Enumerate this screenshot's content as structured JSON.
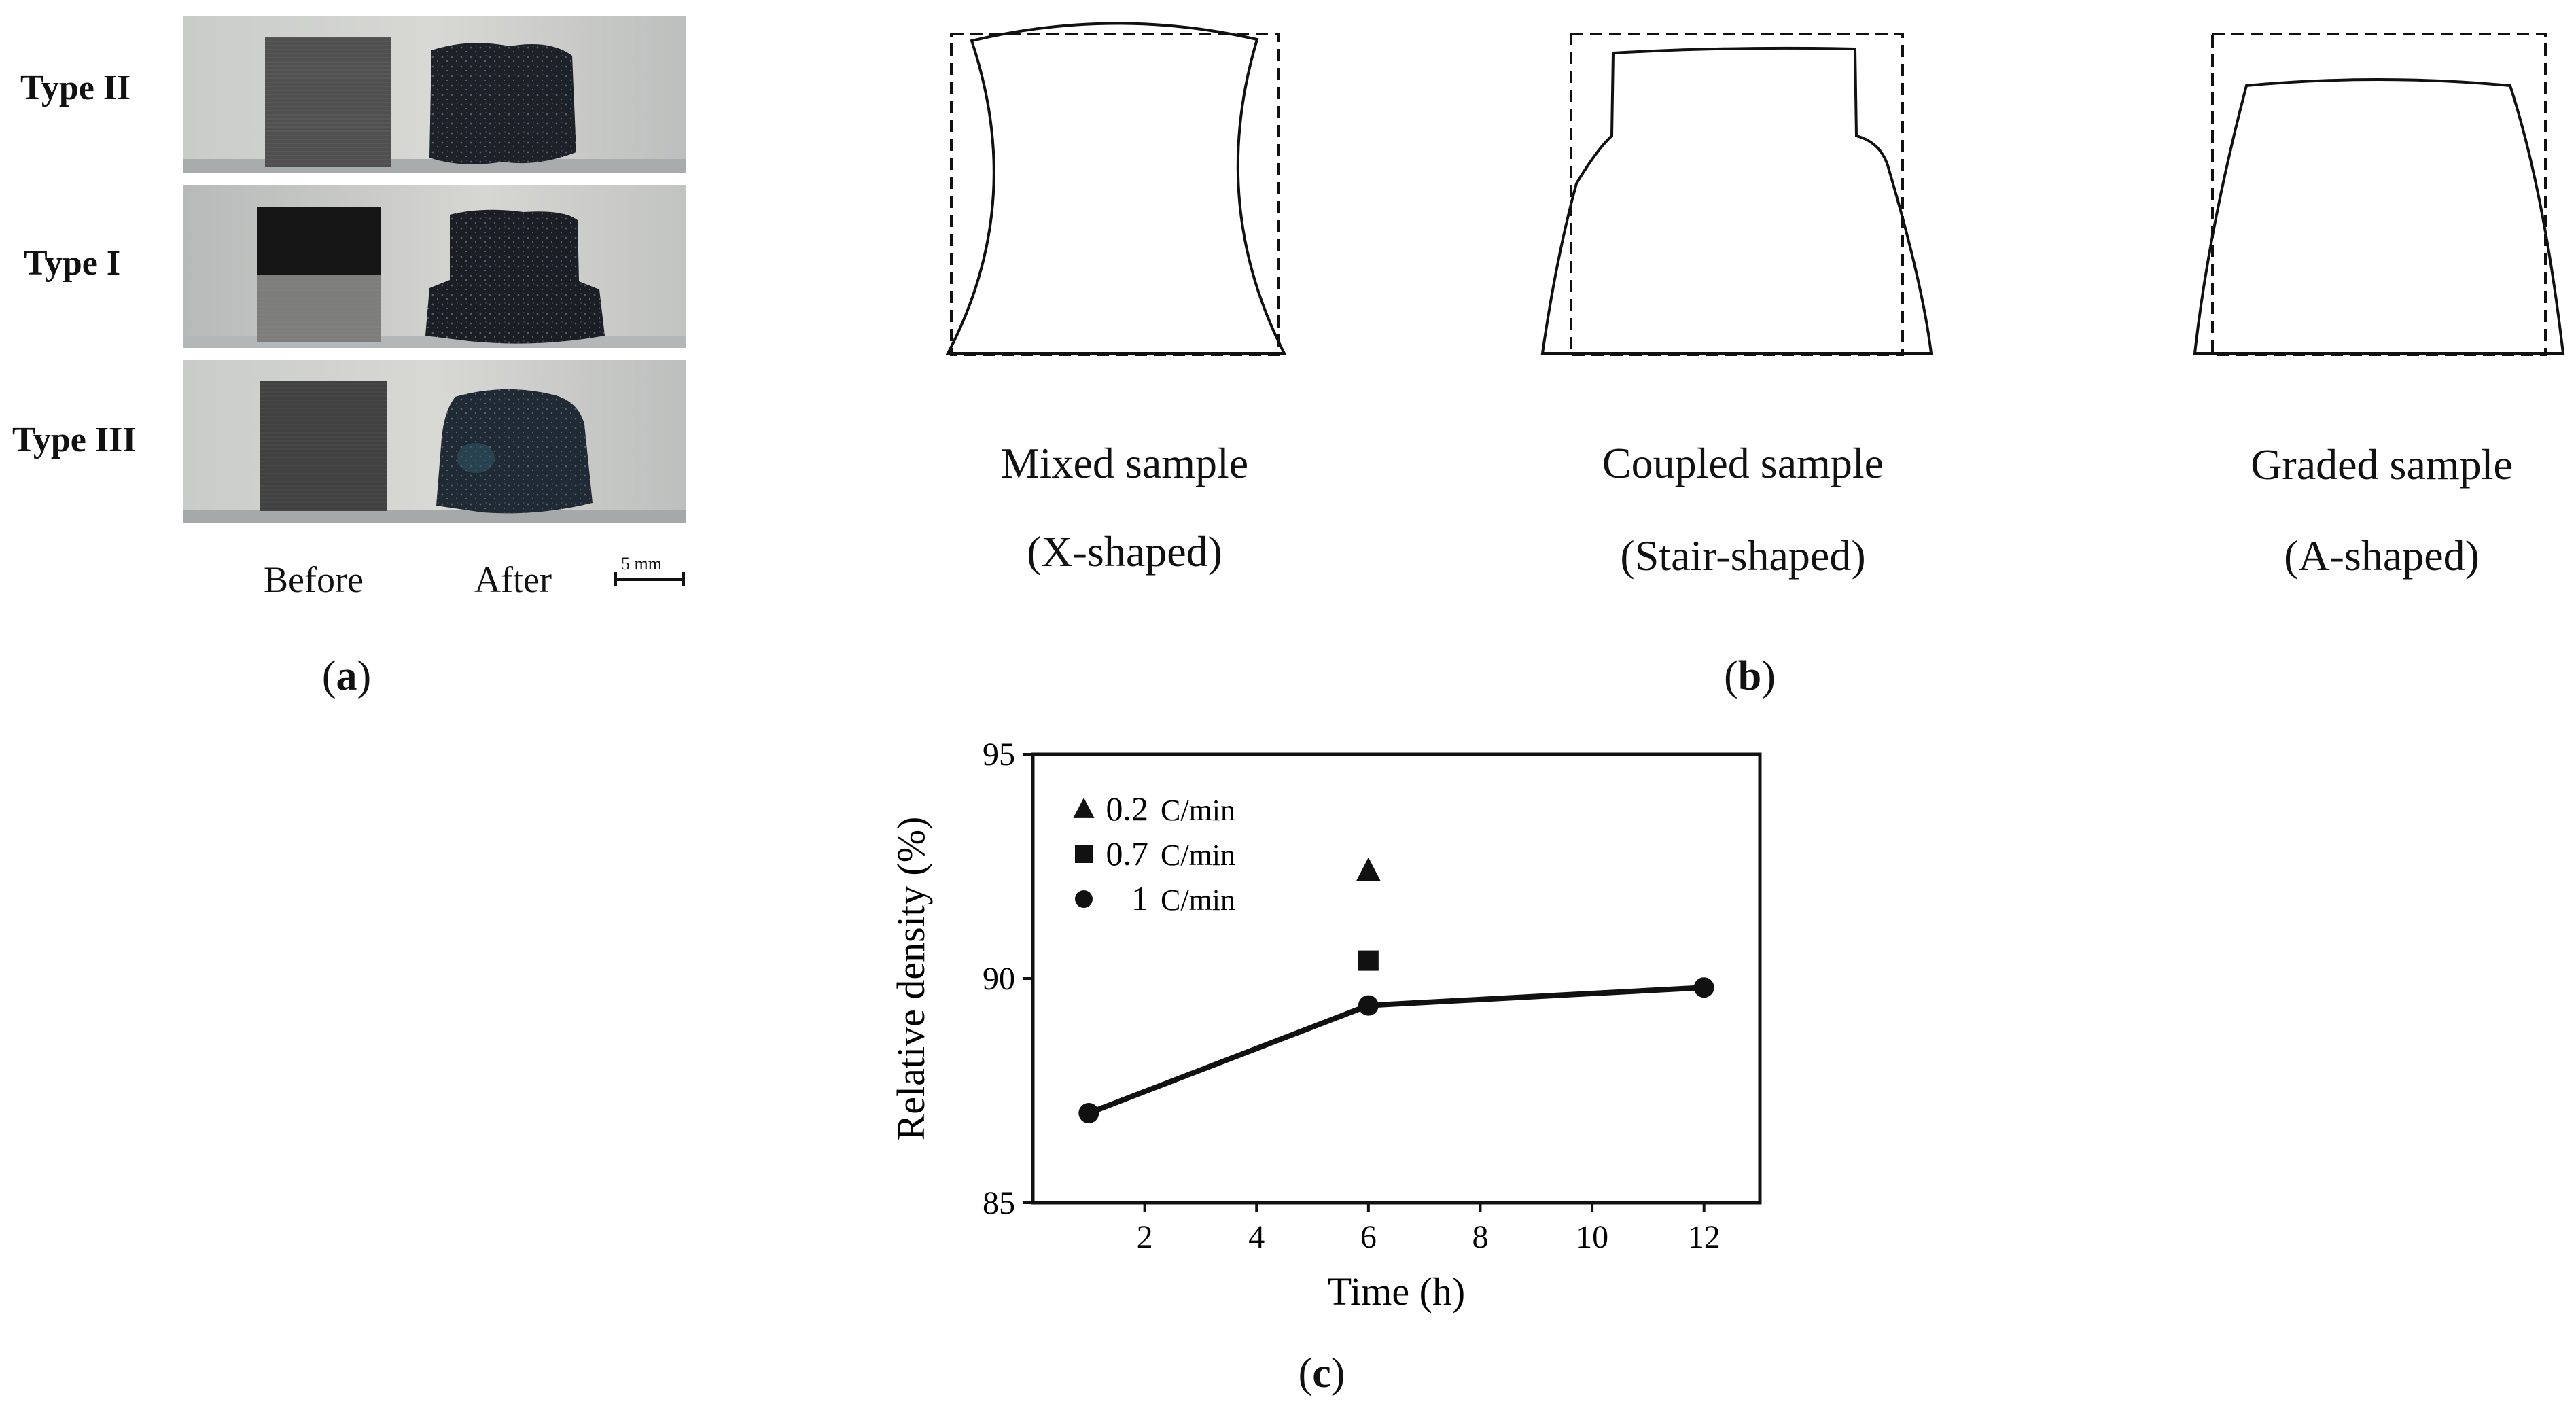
{
  "panel_a": {
    "rows": [
      {
        "label": "Type II",
        "after_tint": "#1d2128"
      },
      {
        "label": "Type I",
        "after_tint": "#1b1e24"
      },
      {
        "label": "Type III",
        "after_tint": "#1f2a34"
      }
    ],
    "col_before": "Before",
    "col_after": "After",
    "scale_bar": "5 mm",
    "panel_letter": "a"
  },
  "panel_b": {
    "shapes": [
      {
        "title": "Mixed sample",
        "subtitle": "(X-shaped)"
      },
      {
        "title": "Coupled sample",
        "subtitle": "(Stair-shaped)"
      },
      {
        "title": "Graded sample",
        "subtitle": "(A-shaped)"
      }
    ],
    "panel_letter": "b"
  },
  "panel_c": {
    "panel_letter": "c"
  },
  "chart_data": {
    "type": "line",
    "xlabel": "Time (h)",
    "ylabel": "Relative density (%)",
    "xlim": [
      0,
      13
    ],
    "ylim": [
      85,
      95
    ],
    "xticks": [
      2,
      4,
      6,
      8,
      10,
      12
    ],
    "yticks": [
      85,
      90,
      95
    ],
    "legend_position": "top-left",
    "legend": [
      {
        "marker": "triangle",
        "value": "0.2",
        "unit": "C/min"
      },
      {
        "marker": "square",
        "value": "0.7",
        "unit": "C/min"
      },
      {
        "marker": "circle",
        "value": "1",
        "unit": "C/min"
      }
    ],
    "series": [
      {
        "name": "0.2 C/min",
        "marker": "triangle",
        "line": false,
        "x": [
          6
        ],
        "y": [
          92.4
        ]
      },
      {
        "name": "0.7 C/min",
        "marker": "square",
        "line": false,
        "x": [
          6
        ],
        "y": [
          90.4
        ]
      },
      {
        "name": "1 C/min",
        "marker": "circle",
        "line": true,
        "x": [
          1,
          6,
          12
        ],
        "y": [
          87.0,
          89.4,
          89.8
        ]
      }
    ]
  }
}
